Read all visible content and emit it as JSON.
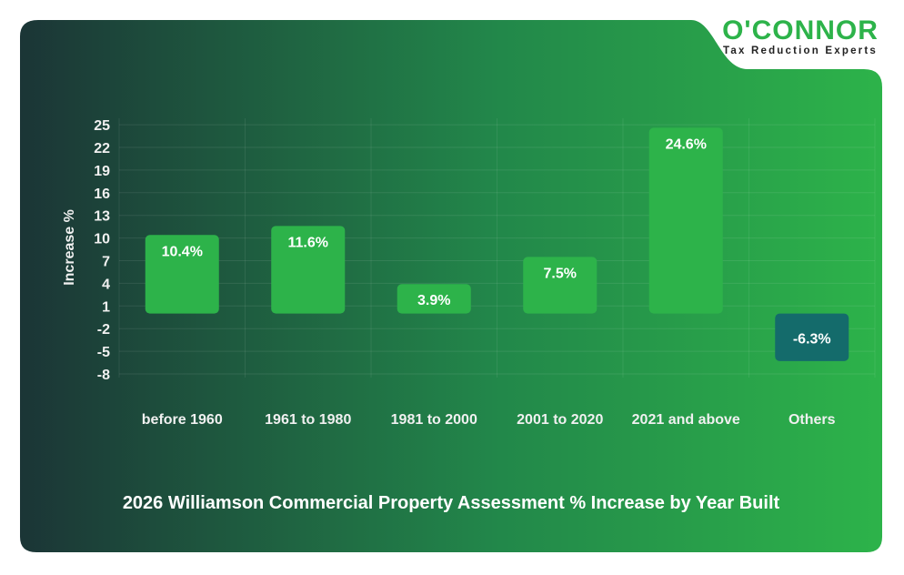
{
  "logo": {
    "name": "O'CONNOR",
    "tagline": "Tax Reduction Experts"
  },
  "chart_data": {
    "type": "bar",
    "title": "2026 Williamson Commercial Property Assessment % Increase by Year Built",
    "xlabel": "",
    "ylabel": "Increase %",
    "categories": [
      "before 1960",
      "1961 to 1980",
      "1981 to 2000",
      "2001 to 2020",
      "2021 and above",
      "Others"
    ],
    "values": [
      10.4,
      11.6,
      3.9,
      7.5,
      24.6,
      -6.3
    ],
    "data_labels": [
      "10.4%",
      "11.6%",
      "3.9%",
      "7.5%",
      "24.6%",
      "-6.3%"
    ],
    "yticks": [
      25,
      22,
      19,
      16,
      13,
      10,
      7,
      4,
      1,
      -2,
      -5,
      -8
    ],
    "ylim": [
      -8,
      25
    ],
    "grid": true,
    "colors": {
      "positive": "#2db34a",
      "negative": "#146b6b",
      "bg_start": "#1b3536",
      "bg_end": "#2db34a"
    }
  }
}
